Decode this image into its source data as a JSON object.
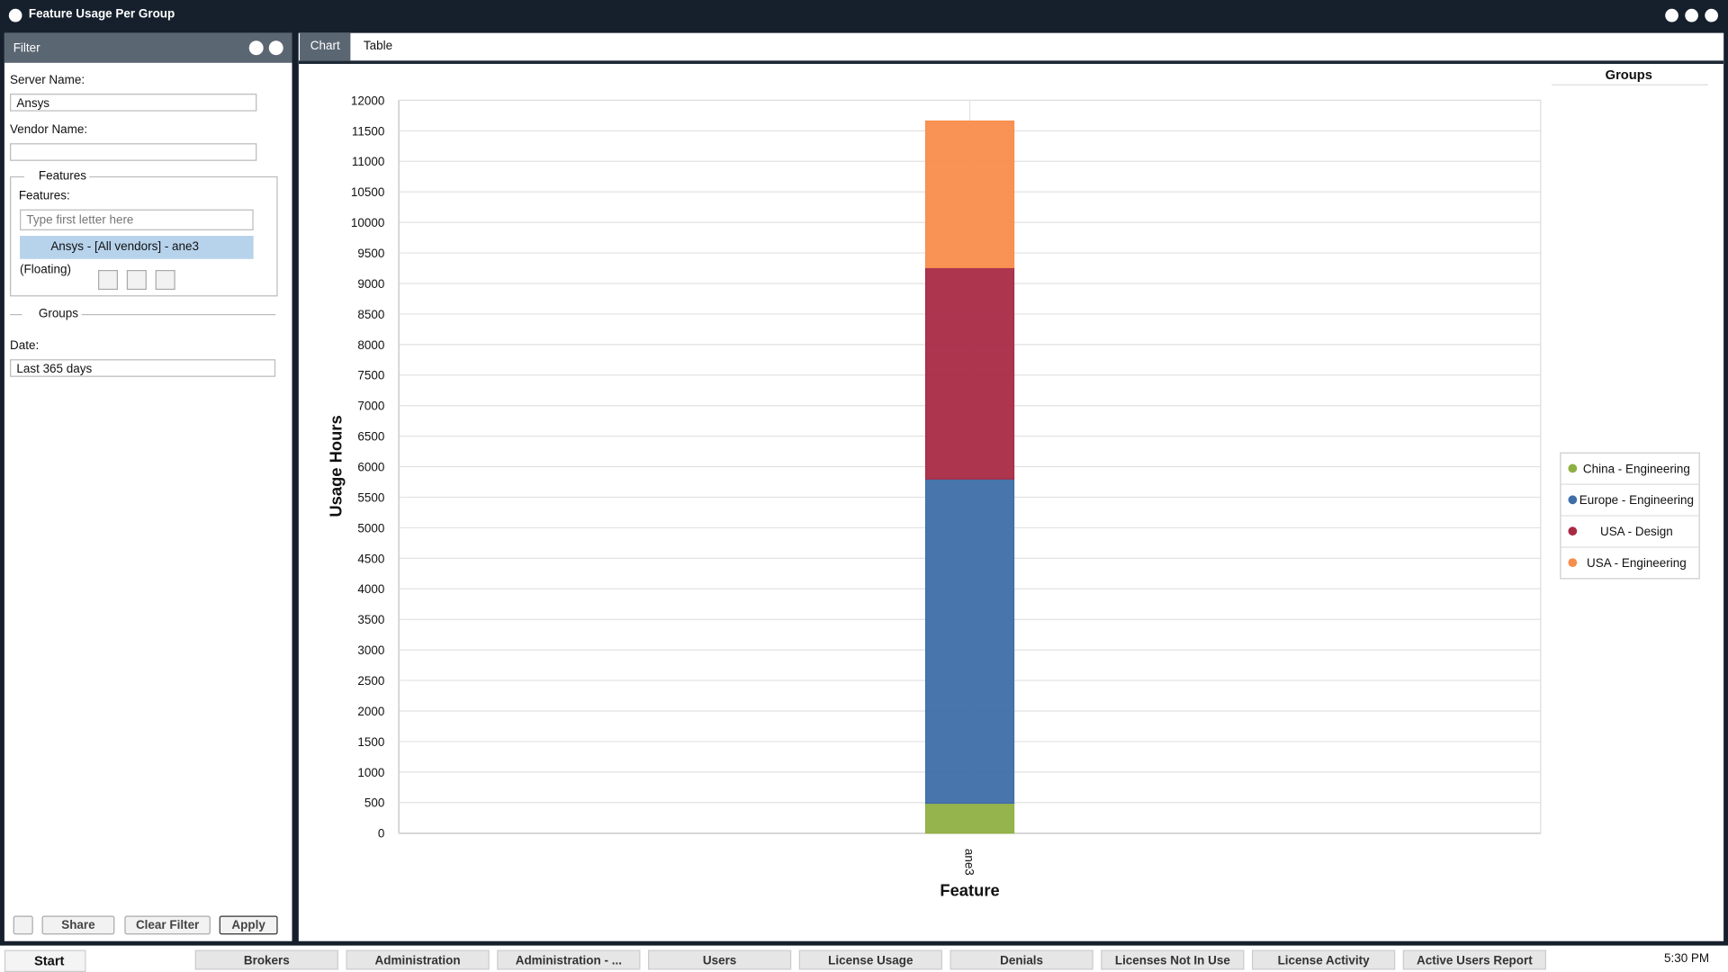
{
  "window": {
    "title": "Feature Usage Per Group"
  },
  "filter": {
    "title": "Filter",
    "server_label": "Server Name:",
    "server_value": "Ansys",
    "vendor_label": "Vendor Name:",
    "features_section": "Features",
    "features_label": "Features:",
    "features_placeholder": "Type first letter here",
    "selected_feature": "Ansys - [All vendors] - ane3 (Floating)",
    "groups_section": "Groups",
    "date_label": "Date:",
    "date_value": "Last 365 days",
    "buttons": [
      "Share",
      "Clear Filter",
      "Apply"
    ]
  },
  "tabs": [
    "Chart",
    "Table"
  ],
  "chart_data": {
    "type": "stacked_bar",
    "x_label": "Feature",
    "y_label": "Usage Hours",
    "legend_title": "Groups",
    "categories": [
      "ane3"
    ],
    "series": [
      {
        "name": "China - Engineering",
        "color": "#8fb043",
        "values": [
          490
        ]
      },
      {
        "name": "Europe - Engineering",
        "color": "#3e6ea8",
        "values": [
          5310
        ]
      },
      {
        "name": "USA - Design",
        "color": "#a92a45",
        "values": [
          3460
        ]
      },
      {
        "name": "USA - Engineering",
        "color": "#f88d4c",
        "values": [
          2400
        ]
      }
    ],
    "ylim": [
      0,
      12000
    ],
    "yticks": [
      0,
      500,
      1000,
      1500,
      2000,
      2500,
      3000,
      3500,
      4000,
      4500,
      5000,
      5500,
      6000,
      6500,
      7000,
      7500,
      8000,
      8500,
      9000,
      9500,
      10000,
      10500,
      11000,
      11500,
      12000
    ],
    "grid": true,
    "legend_position": "right"
  },
  "taskbar": {
    "start": "Start",
    "items": [
      "Brokers",
      "Administration",
      "Administration - ...",
      "Users",
      "License Usage",
      "Denials",
      "Licenses Not In Use",
      "License Activity",
      "Active Users Report"
    ],
    "clock": "5:30 PM"
  }
}
